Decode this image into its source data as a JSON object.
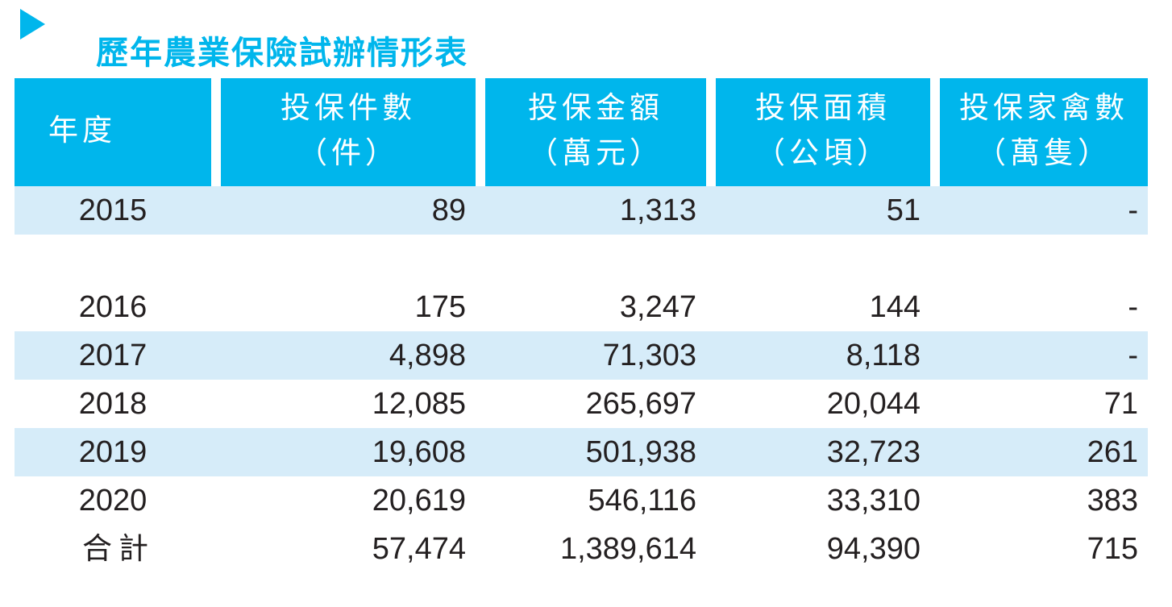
{
  "title": "歷年農業保險試辦情形表",
  "marker_icon": "play-triangle-icon",
  "colors": {
    "accent_cyan": "#00b6ec",
    "row_alt_blue": "#d6ecf9",
    "text_dark": "#242021"
  },
  "table": {
    "columns": [
      {
        "label_line1": "年度",
        "label_line2": ""
      },
      {
        "label_line1": "投保件數",
        "label_line2": "（件）"
      },
      {
        "label_line1": "投保金額",
        "label_line2": "（萬元）"
      },
      {
        "label_line1": "投保面積",
        "label_line2": "（公頃）"
      },
      {
        "label_line1": "投保家禽數",
        "label_line2": "（萬隻）"
      }
    ],
    "rows": [
      {
        "year": "2015",
        "cases": "89",
        "amount": "1,313",
        "area": "51",
        "poultry": "-",
        "highlight": true,
        "is_total": false,
        "spacer_after": true
      },
      {
        "year": "2016",
        "cases": "175",
        "amount": "3,247",
        "area": "144",
        "poultry": "-",
        "highlight": false,
        "is_total": false,
        "spacer_after": false
      },
      {
        "year": "2017",
        "cases": "4,898",
        "amount": "71,303",
        "area": "8,118",
        "poultry": "-",
        "highlight": true,
        "is_total": false,
        "spacer_after": false
      },
      {
        "year": "2018",
        "cases": "12,085",
        "amount": "265,697",
        "area": "20,044",
        "poultry": "71",
        "highlight": false,
        "is_total": false,
        "spacer_after": false
      },
      {
        "year": "2019",
        "cases": "19,608",
        "amount": "501,938",
        "area": "32,723",
        "poultry": "261",
        "highlight": true,
        "is_total": false,
        "spacer_after": false
      },
      {
        "year": "2020",
        "cases": "20,619",
        "amount": "546,116",
        "area": "33,310",
        "poultry": "383",
        "highlight": false,
        "is_total": false,
        "spacer_after": false
      },
      {
        "year": "合計",
        "cases": "57,474",
        "amount": "1,389,614",
        "area": "94,390",
        "poultry": "715",
        "highlight": false,
        "is_total": true,
        "spacer_after": false
      }
    ]
  }
}
